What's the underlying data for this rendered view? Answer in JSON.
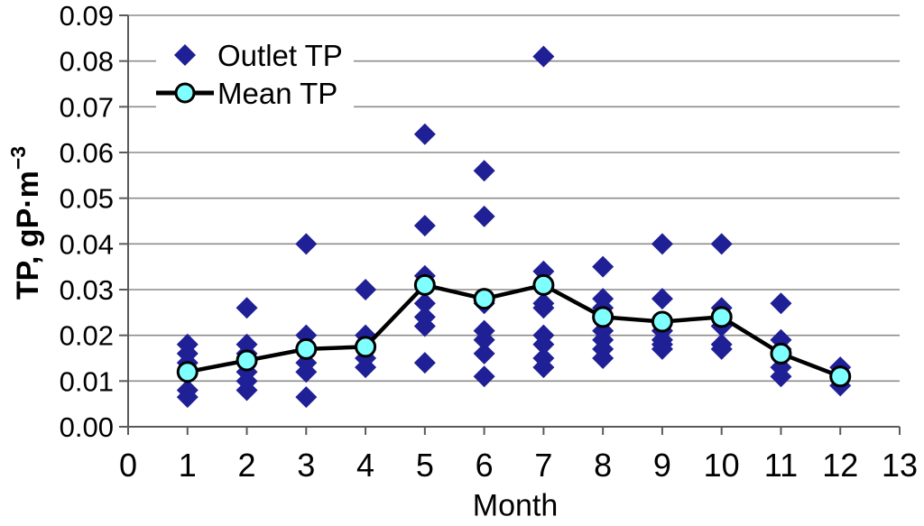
{
  "chart_data": {
    "type": "scatter",
    "title": "",
    "xlabel": "Month",
    "ylabel": "TP, gP·m⁻³",
    "ylabel_base": "TP, gP·m",
    "ylabel_exponent": "−3",
    "xlim": [
      0,
      13
    ],
    "ylim": [
      0,
      0.09
    ],
    "x_ticks": [
      "0",
      "1",
      "2",
      "3",
      "4",
      "5",
      "6",
      "7",
      "8",
      "9",
      "10",
      "11",
      "12",
      "13"
    ],
    "y_ticks": [
      "0.00",
      "0.01",
      "0.02",
      "0.03",
      "0.04",
      "0.05",
      "0.06",
      "0.07",
      "0.08",
      "0.09"
    ],
    "grid": "horizontal",
    "legend_position": "top-left-inside",
    "colors": {
      "navy": "#1f1f96",
      "cyan": "#7fffff",
      "gridline": "#8c8c8c",
      "axis": "#5a5a5a"
    },
    "series": [
      {
        "name": "Outlet TP",
        "type": "scatter",
        "marker": "diamond",
        "color": "#1f1f96",
        "points": [
          [
            1,
            0.018
          ],
          [
            1,
            0.016
          ],
          [
            1,
            0.014
          ],
          [
            1,
            0.012
          ],
          [
            1,
            0.008
          ],
          [
            1,
            0.0065
          ],
          [
            2,
            0.026
          ],
          [
            2,
            0.018
          ],
          [
            2,
            0.016
          ],
          [
            2,
            0.012
          ],
          [
            2,
            0.01
          ],
          [
            2,
            0.008
          ],
          [
            3,
            0.04
          ],
          [
            3,
            0.02
          ],
          [
            3,
            0.014
          ],
          [
            3,
            0.012
          ],
          [
            3,
            0.0065
          ],
          [
            4,
            0.03
          ],
          [
            4,
            0.02
          ],
          [
            4,
            0.018
          ],
          [
            4,
            0.015
          ],
          [
            4,
            0.013
          ],
          [
            5,
            0.064
          ],
          [
            5,
            0.044
          ],
          [
            5,
            0.033
          ],
          [
            5,
            0.027
          ],
          [
            5,
            0.024
          ],
          [
            5,
            0.022
          ],
          [
            5,
            0.014
          ],
          [
            6,
            0.056
          ],
          [
            6,
            0.046
          ],
          [
            6,
            0.027
          ],
          [
            6,
            0.021
          ],
          [
            6,
            0.019
          ],
          [
            6,
            0.016
          ],
          [
            6,
            0.011
          ],
          [
            7,
            0.081
          ],
          [
            7,
            0.034
          ],
          [
            7,
            0.027
          ],
          [
            7,
            0.026
          ],
          [
            7,
            0.02
          ],
          [
            7,
            0.018
          ],
          [
            7,
            0.015
          ],
          [
            7,
            0.013
          ],
          [
            8,
            0.035
          ],
          [
            8,
            0.028
          ],
          [
            8,
            0.026
          ],
          [
            8,
            0.021
          ],
          [
            8,
            0.019
          ],
          [
            8,
            0.017
          ],
          [
            8,
            0.015
          ],
          [
            9,
            0.04
          ],
          [
            9,
            0.028
          ],
          [
            9,
            0.021
          ],
          [
            9,
            0.019
          ],
          [
            9,
            0.018
          ],
          [
            9,
            0.017
          ],
          [
            10,
            0.04
          ],
          [
            10,
            0.026
          ],
          [
            10,
            0.022
          ],
          [
            10,
            0.018
          ],
          [
            10,
            0.017
          ],
          [
            11,
            0.027
          ],
          [
            11,
            0.019
          ],
          [
            11,
            0.017
          ],
          [
            11,
            0.013
          ],
          [
            11,
            0.011
          ],
          [
            12,
            0.013
          ],
          [
            12,
            0.011
          ],
          [
            12,
            0.009
          ]
        ]
      },
      {
        "name": "Mean TP",
        "type": "line",
        "marker": "circle",
        "line_color": "#000000",
        "marker_fill": "#7fffff",
        "x": [
          1,
          2,
          3,
          4,
          5,
          6,
          7,
          8,
          9,
          10,
          11,
          12
        ],
        "y": [
          0.012,
          0.0145,
          0.017,
          0.0175,
          0.031,
          0.028,
          0.031,
          0.024,
          0.023,
          0.024,
          0.016,
          0.011
        ]
      }
    ]
  }
}
